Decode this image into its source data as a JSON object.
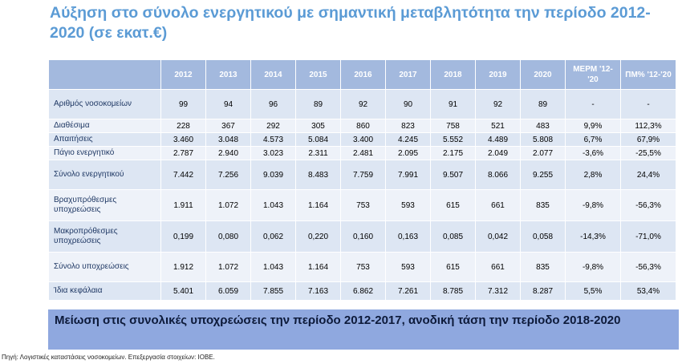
{
  "title": "Αύξηση στο σύνολο ενεργητικού με σημαντική μεταβλητότητα την περίοδο 2012-2020 (σε εκατ.€)",
  "table": {
    "headers": [
      "2012",
      "2013",
      "2014",
      "2015",
      "2016",
      "2017",
      "2018",
      "2019",
      "2020",
      "ΜΕΡΜ '12-'20",
      "ΠΜ% '12-'20"
    ],
    "rows": [
      {
        "label": "Αριθμός νοσοκομείων",
        "values": [
          "99",
          "94",
          "96",
          "89",
          "92",
          "90",
          "91",
          "92",
          "89",
          "-",
          "-"
        ]
      },
      {
        "label": "Διαθέσιμα",
        "values": [
          "228",
          "367",
          "292",
          "305",
          "860",
          "823",
          "758",
          "521",
          "483",
          "9,9%",
          "112,3%"
        ]
      },
      {
        "label": "Απαιτήσεις",
        "values": [
          "3.460",
          "3.048",
          "4.573",
          "5.084",
          "3.400",
          "4.245",
          "5.552",
          "4.489",
          "5.808",
          "6,7%",
          "67,9%"
        ]
      },
      {
        "label": "Πάγιο ενεργητικό",
        "values": [
          "2.787",
          "2.940",
          "3.023",
          "2.311",
          "2.481",
          "2.095",
          "2.175",
          "2.049",
          "2.077",
          "-3,6%",
          "-25,5%"
        ]
      },
      {
        "label": "Σύνολο ενεργητικού",
        "values": [
          "7.442",
          "7.256",
          "9.039",
          "8.483",
          "7.759",
          "7.991",
          "9.507",
          "8.066",
          "9.255",
          "2,8%",
          "24,4%"
        ]
      },
      {
        "label": "Βραχυπρόθεσμες υποχρεώσεις",
        "values": [
          "1.911",
          "1.072",
          "1.043",
          "1.164",
          "753",
          "593",
          "615",
          "661",
          "835",
          "-9,8%",
          "-56,3%"
        ]
      },
      {
        "label": "Μακροπρόθεσμες υποχρεώσεις",
        "values": [
          "0,199",
          "0,080",
          "0,062",
          "0,220",
          "0,160",
          "0,163",
          "0,085",
          "0,042",
          "0,058",
          "-14,3%",
          "-71,0%"
        ]
      },
      {
        "label": "Σύνολο υποχρεώσεις",
        "values": [
          "1.912",
          "1.072",
          "1.043",
          "1.164",
          "753",
          "593",
          "615",
          "661",
          "835",
          "-9,8%",
          "-56,3%"
        ]
      },
      {
        "label": "Ίδια κεφάλαια",
        "values": [
          "5.401",
          "6.059",
          "7.855",
          "7.163",
          "6.862",
          "7.261",
          "8.785",
          "7.312",
          "8.287",
          "5,5%",
          "53,4%"
        ]
      }
    ]
  },
  "banner": "Μείωση στις συνολικές υποχρεώσεις την περίοδο 2012-2017, ανοδική τάση την περίοδο 2018-2020",
  "source": "Πηγή: Λογιστικές καταστάσεις νοσοκομείων. Επεξεργασία στοιχείων: ΙΟΒΕ."
}
